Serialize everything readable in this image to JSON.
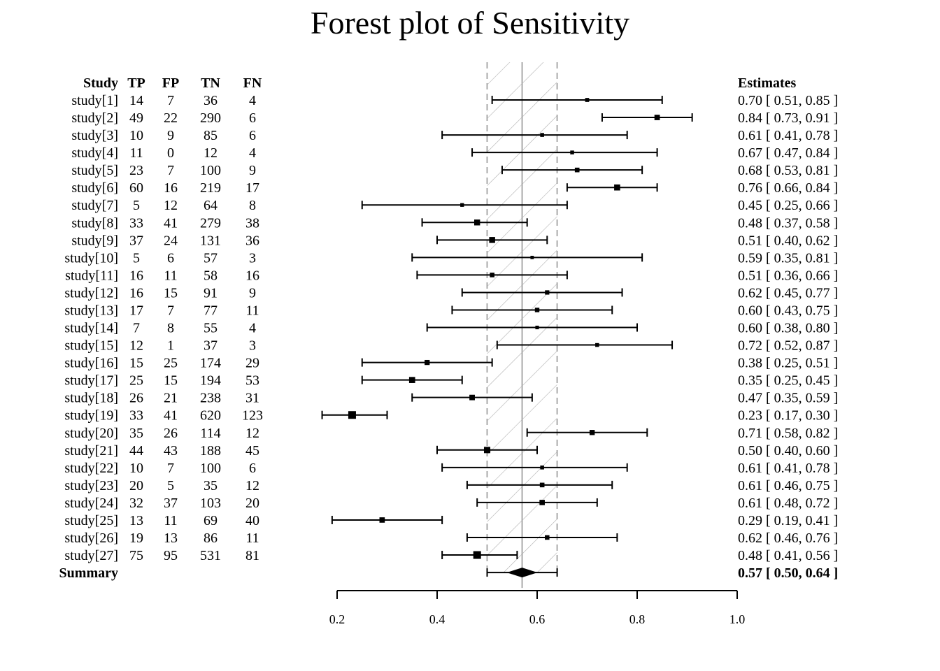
{
  "chart_data": {
    "type": "forest",
    "title": "Forest plot of Sensitivity",
    "table_headers": {
      "study": "Study",
      "tp": "TP",
      "fp": "FP",
      "tn": "TN",
      "fn": "FN",
      "estimates": "Estimates"
    },
    "studies": [
      {
        "name": "study[1]",
        "tp": 14,
        "fp": 7,
        "tn": 36,
        "fn": 4,
        "est": 0.7,
        "lo": 0.51,
        "hi": 0.85,
        "label": "0.70 [ 0.51, 0.85 ]"
      },
      {
        "name": "study[2]",
        "tp": 49,
        "fp": 22,
        "tn": 290,
        "fn": 6,
        "est": 0.84,
        "lo": 0.73,
        "hi": 0.91,
        "label": "0.84 [ 0.73, 0.91 ]"
      },
      {
        "name": "study[3]",
        "tp": 10,
        "fp": 9,
        "tn": 85,
        "fn": 6,
        "est": 0.61,
        "lo": 0.41,
        "hi": 0.78,
        "label": "0.61 [ 0.41, 0.78 ]"
      },
      {
        "name": "study[4]",
        "tp": 11,
        "fp": 0,
        "tn": 12,
        "fn": 4,
        "est": 0.67,
        "lo": 0.47,
        "hi": 0.84,
        "label": "0.67 [ 0.47, 0.84 ]"
      },
      {
        "name": "study[5]",
        "tp": 23,
        "fp": 7,
        "tn": 100,
        "fn": 9,
        "est": 0.68,
        "lo": 0.53,
        "hi": 0.81,
        "label": "0.68 [ 0.53, 0.81 ]"
      },
      {
        "name": "study[6]",
        "tp": 60,
        "fp": 16,
        "tn": 219,
        "fn": 17,
        "est": 0.76,
        "lo": 0.66,
        "hi": 0.84,
        "label": "0.76 [ 0.66, 0.84 ]"
      },
      {
        "name": "study[7]",
        "tp": 5,
        "fp": 12,
        "tn": 64,
        "fn": 8,
        "est": 0.45,
        "lo": 0.25,
        "hi": 0.66,
        "label": "0.45 [ 0.25, 0.66 ]"
      },
      {
        "name": "study[8]",
        "tp": 33,
        "fp": 41,
        "tn": 279,
        "fn": 38,
        "est": 0.48,
        "lo": 0.37,
        "hi": 0.58,
        "label": "0.48 [ 0.37, 0.58 ]"
      },
      {
        "name": "study[9]",
        "tp": 37,
        "fp": 24,
        "tn": 131,
        "fn": 36,
        "est": 0.51,
        "lo": 0.4,
        "hi": 0.62,
        "label": "0.51 [ 0.40, 0.62 ]"
      },
      {
        "name": "study[10]",
        "tp": 5,
        "fp": 6,
        "tn": 57,
        "fn": 3,
        "est": 0.59,
        "lo": 0.35,
        "hi": 0.81,
        "label": "0.59 [ 0.35, 0.81 ]"
      },
      {
        "name": "study[11]",
        "tp": 16,
        "fp": 11,
        "tn": 58,
        "fn": 16,
        "est": 0.51,
        "lo": 0.36,
        "hi": 0.66,
        "label": "0.51 [ 0.36, 0.66 ]"
      },
      {
        "name": "study[12]",
        "tp": 16,
        "fp": 15,
        "tn": 91,
        "fn": 9,
        "est": 0.62,
        "lo": 0.45,
        "hi": 0.77,
        "label": "0.62 [ 0.45, 0.77 ]"
      },
      {
        "name": "study[13]",
        "tp": 17,
        "fp": 7,
        "tn": 77,
        "fn": 11,
        "est": 0.6,
        "lo": 0.43,
        "hi": 0.75,
        "label": "0.60 [ 0.43, 0.75 ]"
      },
      {
        "name": "study[14]",
        "tp": 7,
        "fp": 8,
        "tn": 55,
        "fn": 4,
        "est": 0.6,
        "lo": 0.38,
        "hi": 0.8,
        "label": "0.60 [ 0.38, 0.80 ]"
      },
      {
        "name": "study[15]",
        "tp": 12,
        "fp": 1,
        "tn": 37,
        "fn": 3,
        "est": 0.72,
        "lo": 0.52,
        "hi": 0.87,
        "label": "0.72 [ 0.52, 0.87 ]"
      },
      {
        "name": "study[16]",
        "tp": 15,
        "fp": 25,
        "tn": 174,
        "fn": 29,
        "est": 0.38,
        "lo": 0.25,
        "hi": 0.51,
        "label": "0.38 [ 0.25, 0.51 ]"
      },
      {
        "name": "study[17]",
        "tp": 25,
        "fp": 15,
        "tn": 194,
        "fn": 53,
        "est": 0.35,
        "lo": 0.25,
        "hi": 0.45,
        "label": "0.35 [ 0.25, 0.45 ]"
      },
      {
        "name": "study[18]",
        "tp": 26,
        "fp": 21,
        "tn": 238,
        "fn": 31,
        "est": 0.47,
        "lo": 0.35,
        "hi": 0.59,
        "label": "0.47 [ 0.35, 0.59 ]"
      },
      {
        "name": "study[19]",
        "tp": 33,
        "fp": 41,
        "tn": 620,
        "fn": 123,
        "est": 0.23,
        "lo": 0.17,
        "hi": 0.3,
        "label": "0.23 [ 0.17, 0.30 ]"
      },
      {
        "name": "study[20]",
        "tp": 35,
        "fp": 26,
        "tn": 114,
        "fn": 12,
        "est": 0.71,
        "lo": 0.58,
        "hi": 0.82,
        "label": "0.71 [ 0.58, 0.82 ]"
      },
      {
        "name": "study[21]",
        "tp": 44,
        "fp": 43,
        "tn": 188,
        "fn": 45,
        "est": 0.5,
        "lo": 0.4,
        "hi": 0.6,
        "label": "0.50 [ 0.40, 0.60 ]"
      },
      {
        "name": "study[22]",
        "tp": 10,
        "fp": 7,
        "tn": 100,
        "fn": 6,
        "est": 0.61,
        "lo": 0.41,
        "hi": 0.78,
        "label": "0.61 [ 0.41, 0.78 ]"
      },
      {
        "name": "study[23]",
        "tp": 20,
        "fp": 5,
        "tn": 35,
        "fn": 12,
        "est": 0.61,
        "lo": 0.46,
        "hi": 0.75,
        "label": "0.61 [ 0.46, 0.75 ]"
      },
      {
        "name": "study[24]",
        "tp": 32,
        "fp": 37,
        "tn": 103,
        "fn": 20,
        "est": 0.61,
        "lo": 0.48,
        "hi": 0.72,
        "label": "0.61 [ 0.48, 0.72 ]"
      },
      {
        "name": "study[25]",
        "tp": 13,
        "fp": 11,
        "tn": 69,
        "fn": 40,
        "est": 0.29,
        "lo": 0.19,
        "hi": 0.41,
        "label": "0.29 [ 0.19, 0.41 ]"
      },
      {
        "name": "study[26]",
        "tp": 19,
        "fp": 13,
        "tn": 86,
        "fn": 11,
        "est": 0.62,
        "lo": 0.46,
        "hi": 0.76,
        "label": "0.62 [ 0.46, 0.76 ]"
      },
      {
        "name": "study[27]",
        "tp": 75,
        "fp": 95,
        "tn": 531,
        "fn": 81,
        "est": 0.48,
        "lo": 0.41,
        "hi": 0.56,
        "label": "0.48 [ 0.41, 0.56 ]"
      }
    ],
    "summary": {
      "name": "Summary",
      "est": 0.57,
      "lo": 0.5,
      "hi": 0.64,
      "label": "0.57 [ 0.50, 0.64 ]"
    },
    "xlim": [
      0.2,
      1.0
    ],
    "xticks": [
      0.2,
      0.4,
      0.6,
      0.8,
      1.0
    ],
    "xtick_labels": [
      "0.2",
      "0.4",
      "0.6",
      "0.8",
      "1.0"
    ],
    "colors": {
      "marks": "#000000",
      "reference_band": "#aaaaaa"
    }
  }
}
